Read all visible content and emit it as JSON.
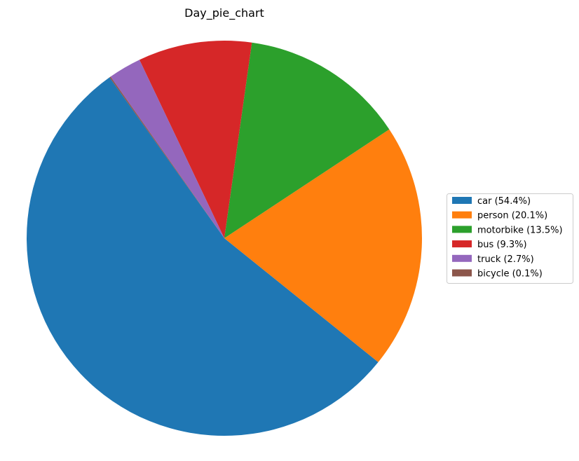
{
  "chart_data": {
    "type": "pie",
    "title": "Day_pie_chart",
    "start_angle_deg": 125.5,
    "direction": "counterclockwise",
    "legend_position": "right",
    "slices": [
      {
        "label": "car",
        "value": 54.4,
        "legend_label": "car (54.4%)",
        "color": "#1f77b4"
      },
      {
        "label": "person",
        "value": 20.1,
        "legend_label": "person (20.1%)",
        "color": "#ff7f0e"
      },
      {
        "label": "motorbike",
        "value": 13.5,
        "legend_label": "motorbike (13.5%)",
        "color": "#2ca02c"
      },
      {
        "label": "bus",
        "value": 9.3,
        "legend_label": "bus (9.3%)",
        "color": "#d62728"
      },
      {
        "label": "truck",
        "value": 2.7,
        "legend_label": "truck (2.7%)",
        "color": "#9467bd"
      },
      {
        "label": "bicycle",
        "value": 0.1,
        "legend_label": "bicycle (0.1%)",
        "color": "#8c564b"
      }
    ]
  }
}
